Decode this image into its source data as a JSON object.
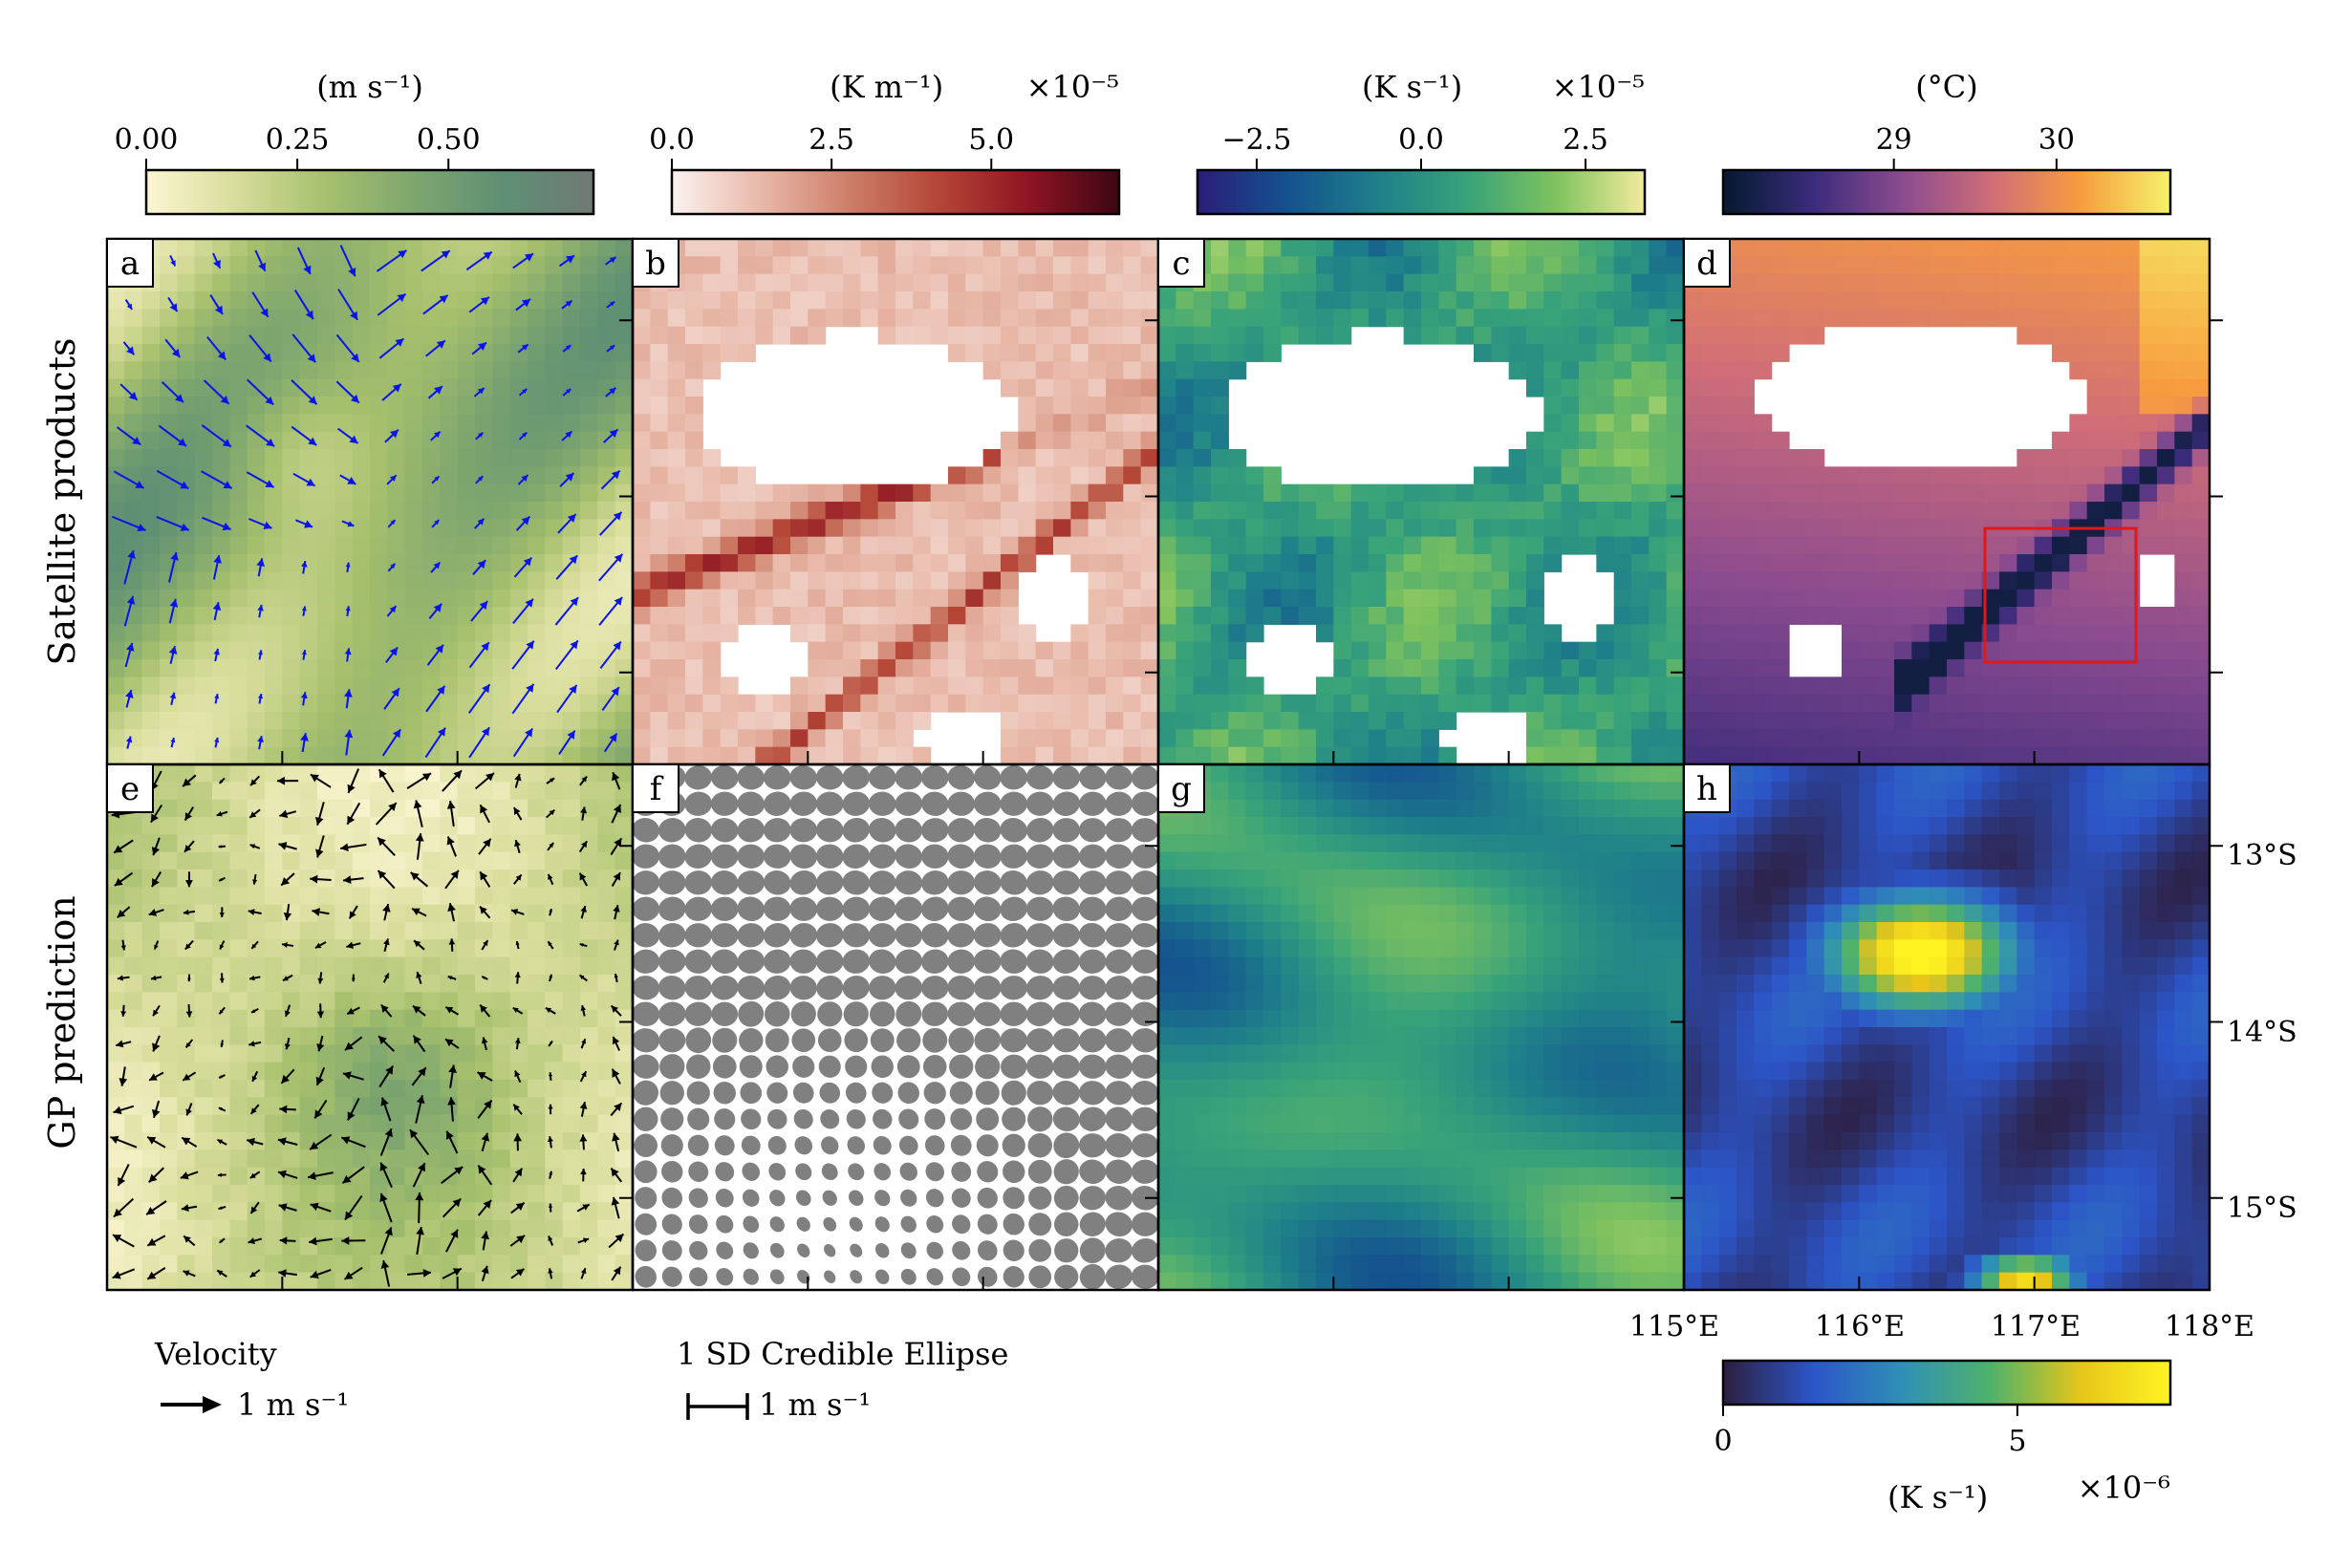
{
  "figure": {
    "row_labels": [
      "Satellite products",
      "GP prediction"
    ],
    "panel_letters": [
      "a",
      "b",
      "c",
      "d",
      "e",
      "f",
      "g",
      "h"
    ]
  },
  "colorbars": [
    {
      "unit": "(m s⁻¹)",
      "multiplier": "",
      "ticks": [
        "0.00",
        "0.25",
        "0.50"
      ],
      "tick_values": [
        0.0,
        0.25,
        0.5
      ],
      "range": [
        0.0,
        0.74
      ],
      "colors": [
        "#fdf6d4",
        "#d8dd9b",
        "#a6c06d",
        "#7ea66e",
        "#5e8f74",
        "#707a74"
      ]
    },
    {
      "unit": "(K m⁻¹)",
      "multiplier": "×10⁻⁵",
      "ticks": [
        "0.0",
        "2.5",
        "5.0"
      ],
      "tick_values": [
        0.0,
        2.5,
        5.0
      ],
      "range": [
        0.0,
        7.0
      ],
      "colors": [
        "#fbf2f0",
        "#e8b8a8",
        "#cd7d68",
        "#b44536",
        "#8e1423",
        "#3d0613"
      ]
    },
    {
      "unit": "(K s⁻¹)",
      "multiplier": "×10⁻⁵",
      "ticks": [
        "−2.5",
        "0.0",
        "2.5"
      ],
      "tick_values": [
        -2.5,
        0.0,
        2.5
      ],
      "range": [
        -3.4,
        3.4
      ],
      "colors": [
        "#2a1d79",
        "#14518f",
        "#1e7f8a",
        "#37a27a",
        "#7fc25e",
        "#f2eb9c"
      ]
    },
    {
      "unit": "(°C)",
      "multiplier": "",
      "ticks": [
        "29",
        "30"
      ],
      "tick_values": [
        29,
        30
      ],
      "range": [
        27.95,
        30.7
      ],
      "colors": [
        "#041a2e",
        "#3b2b7c",
        "#8b4b8f",
        "#d06d78",
        "#f79d3e",
        "#f6f26a"
      ]
    },
    {
      "unit": "(K s⁻¹)",
      "multiplier": "×10⁻⁶",
      "ticks": [
        "0",
        "5"
      ],
      "tick_values": [
        0,
        5
      ],
      "range": [
        0,
        7.6
      ],
      "colors": [
        "#2d1e3f",
        "#2c55c8",
        "#2f90b6",
        "#4fb26a",
        "#e7c619",
        "#fff422"
      ]
    }
  ],
  "axes": {
    "x_ticks": [
      "115°E",
      "116°E",
      "117°E",
      "118°E"
    ],
    "y_ticks": [
      "13°S",
      "14°S",
      "15°S"
    ]
  },
  "legends": {
    "velocity_title": "Velocity",
    "velocity_value": "1 m s⁻¹",
    "ellipse_title": "1 SD Credible Ellipse",
    "ellipse_value": "1 m s⁻¹"
  },
  "chart_data": {
    "type": "heatmap",
    "title": "",
    "panels": [
      {
        "id": "a",
        "quantity": "speed",
        "overlay": "velocity arrows",
        "units": "(m s⁻¹)"
      },
      {
        "id": "b",
        "quantity": "temperature gradient",
        "units": "(K m⁻¹) ×10⁻⁵"
      },
      {
        "id": "c",
        "quantity": "temperature tendency",
        "units": "(K s⁻¹) ×10⁻⁵"
      },
      {
        "id": "d",
        "quantity": "temperature",
        "units": "(°C)"
      },
      {
        "id": "e",
        "quantity": "speed",
        "overlay": "velocity arrows",
        "units": "(m s⁻¹)"
      },
      {
        "id": "f",
        "quantity": "uncertainty",
        "overlay": "1 SD Credible Ellipse"
      },
      {
        "id": "g",
        "quantity": "temperature tendency",
        "units": "(K s⁻¹) ×10⁻⁵"
      },
      {
        "id": "h",
        "quantity": "temperature tendency",
        "units": "(K s⁻¹) ×10⁻⁶"
      }
    ],
    "x_range": [
      "114.5°E",
      "118°E"
    ],
    "y_range": [
      "12.5°S",
      "15.5°S"
    ]
  }
}
